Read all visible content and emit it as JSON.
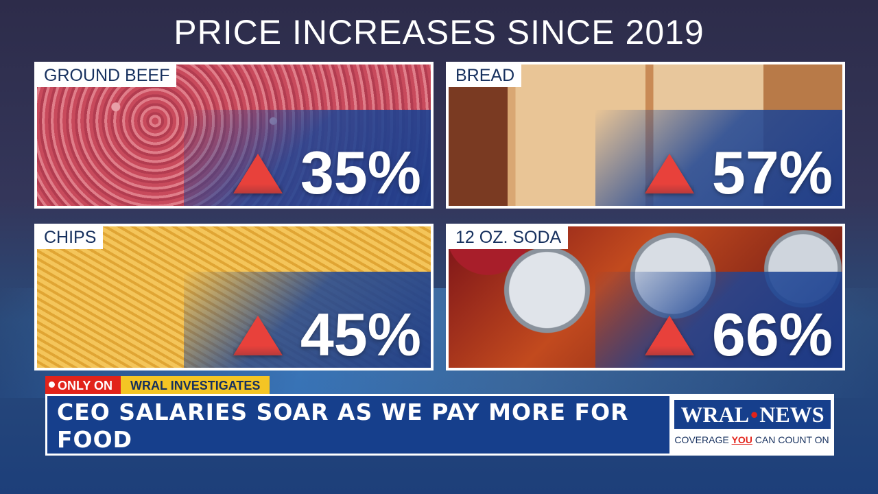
{
  "title": "PRICE INCREASES SINCE 2019",
  "cards": [
    {
      "label": "GROUND BEEF",
      "percent": "35%",
      "arrow_icon": "up-arrow-icon",
      "photo": "ground-beef-photo"
    },
    {
      "label": "BREAD",
      "percent": "57%",
      "arrow_icon": "up-arrow-icon",
      "photo": "bread-photo"
    },
    {
      "label": "CHIPS",
      "percent": "45%",
      "arrow_icon": "up-arrow-icon",
      "photo": "chips-photo"
    },
    {
      "label": "12 OZ. SODA",
      "percent": "66%",
      "arrow_icon": "up-arrow-icon",
      "photo": "soda-photo"
    }
  ],
  "lower_third": {
    "tag_only": "ONLY ON",
    "tag_investigates": "WRAL INVESTIGATES",
    "headline": "CEO SALARIES SOAR AS WE PAY MORE FOR FOOD"
  },
  "logo": {
    "brand_left": "WRAL",
    "brand_dot": "•",
    "brand_right": "NEWS",
    "tagline_pre": "COVERAGE ",
    "tagline_you": "YOU",
    "tagline_post": " CAN COUNT ON"
  },
  "colors": {
    "arrow": "#e2231a",
    "navy": "#163f8c",
    "yellow": "#f4c524",
    "red": "#e2231a"
  }
}
